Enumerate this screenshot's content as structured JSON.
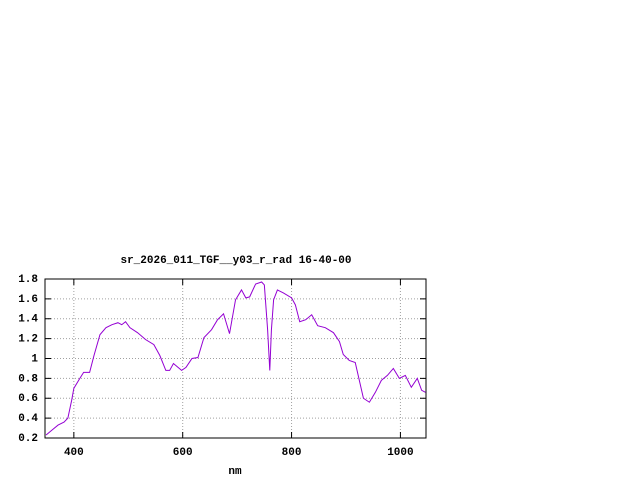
{
  "chart_data": {
    "type": "line",
    "title": "sr_2026_011_TGF__y03_r_rad 16-40-00",
    "x_label": "nm",
    "x": [
      349,
      360,
      371,
      382,
      389,
      396,
      400,
      411,
      418,
      429,
      437,
      448,
      459,
      470,
      481,
      488,
      495,
      503,
      517,
      532,
      547,
      558,
      569,
      576,
      583,
      598,
      606,
      617,
      628,
      639,
      653,
      664,
      675,
      686,
      697,
      708,
      716,
      723,
      734,
      745,
      750,
      756,
      760,
      763,
      767,
      774,
      785,
      800,
      807,
      815,
      826,
      837,
      848,
      862,
      877,
      888,
      895,
      906,
      917,
      932,
      943,
      954,
      965,
      976,
      987,
      998,
      1009,
      1020,
      1031,
      1039,
      1046
    ],
    "values": [
      0.23,
      0.28,
      0.33,
      0.36,
      0.4,
      0.58,
      0.7,
      0.8,
      0.86,
      0.86,
      1.03,
      1.24,
      1.31,
      1.34,
      1.36,
      1.34,
      1.37,
      1.31,
      1.26,
      1.19,
      1.14,
      1.03,
      0.88,
      0.88,
      0.95,
      0.88,
      0.91,
      1.0,
      1.01,
      1.21,
      1.29,
      1.39,
      1.45,
      1.25,
      1.59,
      1.69,
      1.61,
      1.62,
      1.75,
      1.77,
      1.74,
      1.29,
      0.88,
      1.29,
      1.59,
      1.69,
      1.66,
      1.61,
      1.54,
      1.37,
      1.39,
      1.44,
      1.33,
      1.31,
      1.26,
      1.17,
      1.04,
      0.98,
      0.96,
      0.6,
      0.56,
      0.66,
      0.78,
      0.83,
      0.9,
      0.8,
      0.83,
      0.71,
      0.8,
      0.68,
      0.66
    ],
    "color": "#9400d3",
    "xlim": [
      347,
      1047
    ],
    "ylim": [
      0.2,
      1.8
    ],
    "xticks": [
      400,
      600,
      800,
      1000
    ],
    "yticks": [
      0.2,
      0.4,
      0.6,
      0.8,
      1,
      1.2,
      1.4,
      1.6,
      1.8
    ],
    "grid": true
  }
}
